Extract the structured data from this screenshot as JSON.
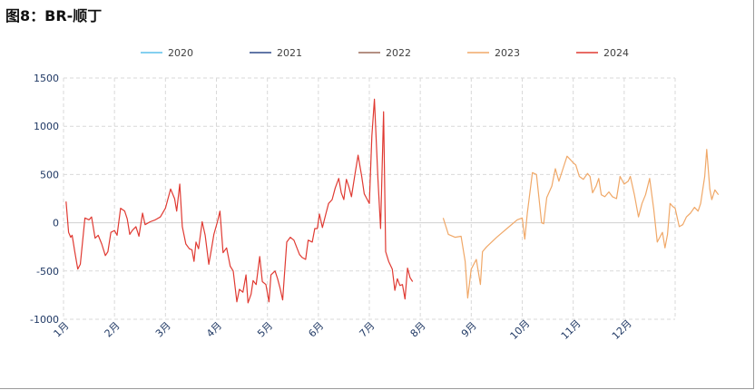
{
  "figure": {
    "title": "图8：BR-顺丁"
  },
  "colors": {
    "2020": "#5BC0EB",
    "2021": "#2F4A8A",
    "2022": "#9C6B5A",
    "2023": "#F0A868",
    "2024": "#E03A32",
    "grid": "#D9D9D9",
    "axis_text": "#1F3864",
    "zero_line": "#D0D0D0"
  },
  "chart_data": {
    "type": "line",
    "title": "",
    "xlabel": "",
    "ylabel": "",
    "ylim": [
      -1000,
      1500
    ],
    "y_ticks": [
      "1500",
      "1000",
      "500",
      "0",
      "-500",
      "-1000"
    ],
    "x_ticks": [
      "1月",
      "2月",
      "3月",
      "4月",
      "5月",
      "6月",
      "7月",
      "8月",
      "9月",
      "10月",
      "11月",
      "12月"
    ],
    "legend_position": "top",
    "grid": true,
    "series": [
      {
        "name": "2020",
        "points": []
      },
      {
        "name": "2021",
        "points": []
      },
      {
        "name": "2022",
        "points": []
      },
      {
        "name": "2023",
        "points": [
          [
            8.45,
            50
          ],
          [
            8.55,
            -120
          ],
          [
            8.68,
            -150
          ],
          [
            8.8,
            -140
          ],
          [
            8.88,
            -400
          ],
          [
            8.93,
            -780
          ],
          [
            9.0,
            -480
          ],
          [
            9.1,
            -380
          ],
          [
            9.18,
            -640
          ],
          [
            9.22,
            -300
          ],
          [
            9.3,
            -250
          ],
          [
            9.5,
            -150
          ],
          [
            9.7,
            -60
          ],
          [
            9.9,
            30
          ],
          [
            10.0,
            50
          ],
          [
            10.05,
            -170
          ],
          [
            10.1,
            100
          ],
          [
            10.2,
            520
          ],
          [
            10.28,
            500
          ],
          [
            10.38,
            0
          ],
          [
            10.42,
            -10
          ],
          [
            10.48,
            260
          ],
          [
            10.58,
            380
          ],
          [
            10.65,
            560
          ],
          [
            10.72,
            430
          ],
          [
            10.8,
            560
          ],
          [
            10.88,
            690
          ],
          [
            10.95,
            650
          ],
          [
            11.0,
            620
          ],
          [
            11.05,
            600
          ],
          [
            11.12,
            480
          ],
          [
            11.2,
            450
          ],
          [
            11.28,
            510
          ],
          [
            11.33,
            480
          ],
          [
            11.38,
            310
          ],
          [
            11.45,
            380
          ],
          [
            11.5,
            460
          ],
          [
            11.55,
            290
          ],
          [
            11.62,
            270
          ],
          [
            11.7,
            320
          ],
          [
            11.77,
            270
          ],
          [
            11.85,
            250
          ],
          [
            11.92,
            480
          ],
          [
            12.0,
            400
          ],
          [
            12.08,
            430
          ],
          [
            12.12,
            480
          ],
          [
            12.2,
            290
          ],
          [
            12.28,
            60
          ],
          [
            12.35,
            200
          ],
          [
            12.42,
            290
          ],
          [
            12.5,
            460
          ],
          [
            12.58,
            140
          ],
          [
            12.65,
            -200
          ],
          [
            12.7,
            -150
          ],
          [
            12.75,
            -100
          ],
          [
            12.8,
            -260
          ],
          [
            12.85,
            -120
          ],
          [
            12.9,
            200
          ],
          [
            12.95,
            170
          ],
          [
            13.0,
            150
          ],
          [
            13.08,
            -40
          ],
          [
            13.15,
            -20
          ],
          [
            13.22,
            60
          ],
          [
            13.3,
            100
          ],
          [
            13.38,
            160
          ],
          [
            13.45,
            120
          ],
          [
            13.5,
            200
          ],
          [
            13.58,
            480
          ],
          [
            13.62,
            760
          ],
          [
            13.68,
            350
          ],
          [
            13.72,
            240
          ],
          [
            13.78,
            340
          ],
          [
            13.85,
            290
          ]
        ]
      },
      {
        "name": "2024",
        "points": [
          [
            1.05,
            220
          ],
          [
            1.1,
            -100
          ],
          [
            1.14,
            -150
          ],
          [
            1.17,
            -130
          ],
          [
            1.22,
            -300
          ],
          [
            1.28,
            -480
          ],
          [
            1.33,
            -430
          ],
          [
            1.42,
            50
          ],
          [
            1.5,
            30
          ],
          [
            1.55,
            60
          ],
          [
            1.62,
            -160
          ],
          [
            1.68,
            -130
          ],
          [
            1.75,
            -220
          ],
          [
            1.82,
            -340
          ],
          [
            1.87,
            -300
          ],
          [
            1.93,
            -100
          ],
          [
            2.0,
            -80
          ],
          [
            2.05,
            -130
          ],
          [
            2.12,
            150
          ],
          [
            2.2,
            120
          ],
          [
            2.25,
            40
          ],
          [
            2.3,
            -120
          ],
          [
            2.35,
            -80
          ],
          [
            2.42,
            -40
          ],
          [
            2.48,
            -140
          ],
          [
            2.55,
            100
          ],
          [
            2.6,
            -20
          ],
          [
            2.7,
            10
          ],
          [
            2.8,
            30
          ],
          [
            2.9,
            60
          ],
          [
            3.0,
            150
          ],
          [
            3.1,
            350
          ],
          [
            3.18,
            250
          ],
          [
            3.22,
            120
          ],
          [
            3.28,
            400
          ],
          [
            3.33,
            -40
          ],
          [
            3.4,
            -220
          ],
          [
            3.47,
            -270
          ],
          [
            3.52,
            -280
          ],
          [
            3.56,
            -400
          ],
          [
            3.6,
            -200
          ],
          [
            3.65,
            -270
          ],
          [
            3.72,
            10
          ],
          [
            3.78,
            -130
          ],
          [
            3.85,
            -430
          ],
          [
            3.9,
            -280
          ],
          [
            3.95,
            -120
          ],
          [
            4.02,
            10
          ],
          [
            4.07,
            120
          ],
          [
            4.13,
            -310
          ],
          [
            4.2,
            -260
          ],
          [
            4.27,
            -450
          ],
          [
            4.33,
            -500
          ],
          [
            4.4,
            -820
          ],
          [
            4.45,
            -690
          ],
          [
            4.52,
            -720
          ],
          [
            4.58,
            -540
          ],
          [
            4.62,
            -830
          ],
          [
            4.68,
            -740
          ],
          [
            4.72,
            -600
          ],
          [
            4.78,
            -640
          ],
          [
            4.85,
            -350
          ],
          [
            4.9,
            -610
          ],
          [
            4.97,
            -640
          ],
          [
            5.03,
            -820
          ],
          [
            5.07,
            -540
          ],
          [
            5.15,
            -500
          ],
          [
            5.2,
            -580
          ],
          [
            5.25,
            -680
          ],
          [
            5.3,
            -800
          ],
          [
            5.38,
            -200
          ],
          [
            5.45,
            -150
          ],
          [
            5.52,
            -180
          ],
          [
            5.58,
            -260
          ],
          [
            5.63,
            -330
          ],
          [
            5.68,
            -360
          ],
          [
            5.75,
            -380
          ],
          [
            5.8,
            -180
          ],
          [
            5.88,
            -200
          ],
          [
            5.93,
            -60
          ],
          [
            5.98,
            -60
          ],
          [
            6.02,
            90
          ],
          [
            6.08,
            -50
          ],
          [
            6.15,
            100
          ],
          [
            6.2,
            200
          ],
          [
            6.27,
            240
          ],
          [
            6.33,
            360
          ],
          [
            6.4,
            460
          ],
          [
            6.45,
            310
          ],
          [
            6.5,
            240
          ],
          [
            6.55,
            450
          ],
          [
            6.6,
            370
          ],
          [
            6.65,
            270
          ],
          [
            6.72,
            510
          ],
          [
            6.78,
            700
          ],
          [
            6.85,
            480
          ],
          [
            6.9,
            300
          ],
          [
            6.95,
            250
          ],
          [
            7.0,
            200
          ],
          [
            7.05,
            900
          ],
          [
            7.1,
            1280
          ],
          [
            7.17,
            450
          ],
          [
            7.22,
            -60
          ],
          [
            7.28,
            1150
          ],
          [
            7.32,
            -300
          ],
          [
            7.38,
            -400
          ],
          [
            7.45,
            -480
          ],
          [
            7.5,
            -700
          ],
          [
            7.55,
            -580
          ],
          [
            7.6,
            -650
          ],
          [
            7.65,
            -640
          ],
          [
            7.7,
            -790
          ],
          [
            7.75,
            -470
          ],
          [
            7.8,
            -570
          ],
          [
            7.85,
            -610
          ]
        ]
      }
    ]
  }
}
